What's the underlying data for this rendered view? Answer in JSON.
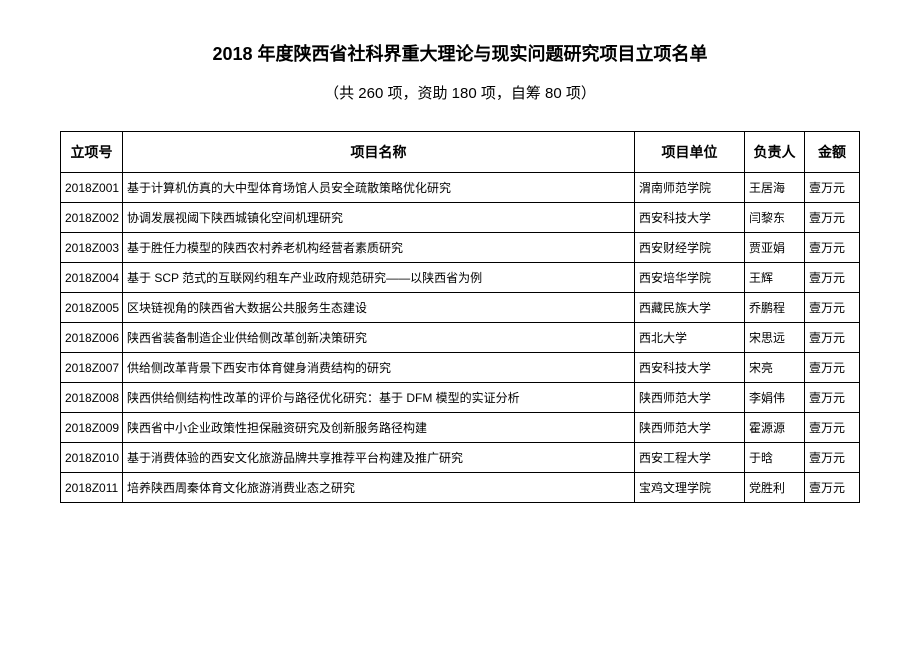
{
  "title": "2018 年度陕西省社科界重大理论与现实问题研究项目立项名单",
  "subtitle": "（共 260 项，资助 180 项，自筹 80 项）",
  "headers": {
    "id": "立项号",
    "name": "项目名称",
    "unit": "项目单位",
    "person": "负责人",
    "amount": "金额"
  },
  "rows": [
    {
      "id": "2018Z001",
      "name": "基于计算机仿真的大中型体育场馆人员安全疏散策略优化研究",
      "unit": "渭南师范学院",
      "person": "王居海",
      "amount": "壹万元"
    },
    {
      "id": "2018Z002",
      "name": "协调发展视阈下陕西城镇化空间机理研究",
      "unit": "西安科技大学",
      "person": "闫黎东",
      "amount": "壹万元"
    },
    {
      "id": "2018Z003",
      "name": "基于胜任力模型的陕西农村养老机构经营者素质研究",
      "unit": "西安财经学院",
      "person": "贾亚娟",
      "amount": "壹万元"
    },
    {
      "id": "2018Z004",
      "name": "基于 SCP 范式的互联网约租车产业政府规范研究——以陕西省为例",
      "unit": "西安培华学院",
      "person": "王辉",
      "amount": "壹万元"
    },
    {
      "id": "2018Z005",
      "name": "区块链视角的陕西省大数据公共服务生态建设",
      "unit": "西藏民族大学",
      "person": "乔鹏程",
      "amount": "壹万元"
    },
    {
      "id": "2018Z006",
      "name": "陕西省装备制造企业供给侧改革创新决策研究",
      "unit": "西北大学",
      "person": "宋思远",
      "amount": "壹万元"
    },
    {
      "id": "2018Z007",
      "name": "供给侧改革背景下西安市体育健身消费结构的研究",
      "unit": "西安科技大学",
      "person": "宋亮",
      "amount": "壹万元"
    },
    {
      "id": "2018Z008",
      "name": "陕西供给侧结构性改革的评价与路径优化研究：基于 DFM 模型的实证分析",
      "unit": "陕西师范大学",
      "person": "李娟伟",
      "amount": "壹万元"
    },
    {
      "id": "2018Z009",
      "name": "陕西省中小企业政策性担保融资研究及创新服务路径构建",
      "unit": "陕西师范大学",
      "person": "霍源源",
      "amount": "壹万元"
    },
    {
      "id": "2018Z010",
      "name": "基于消费体验的西安文化旅游品牌共享推荐平台构建及推广研究",
      "unit": "西安工程大学",
      "person": "于晗",
      "amount": "壹万元"
    },
    {
      "id": "2018Z011",
      "name": "培养陕西周秦体育文化旅游消费业态之研究",
      "unit": "宝鸡文理学院",
      "person": "党胜利",
      "amount": "壹万元"
    }
  ]
}
